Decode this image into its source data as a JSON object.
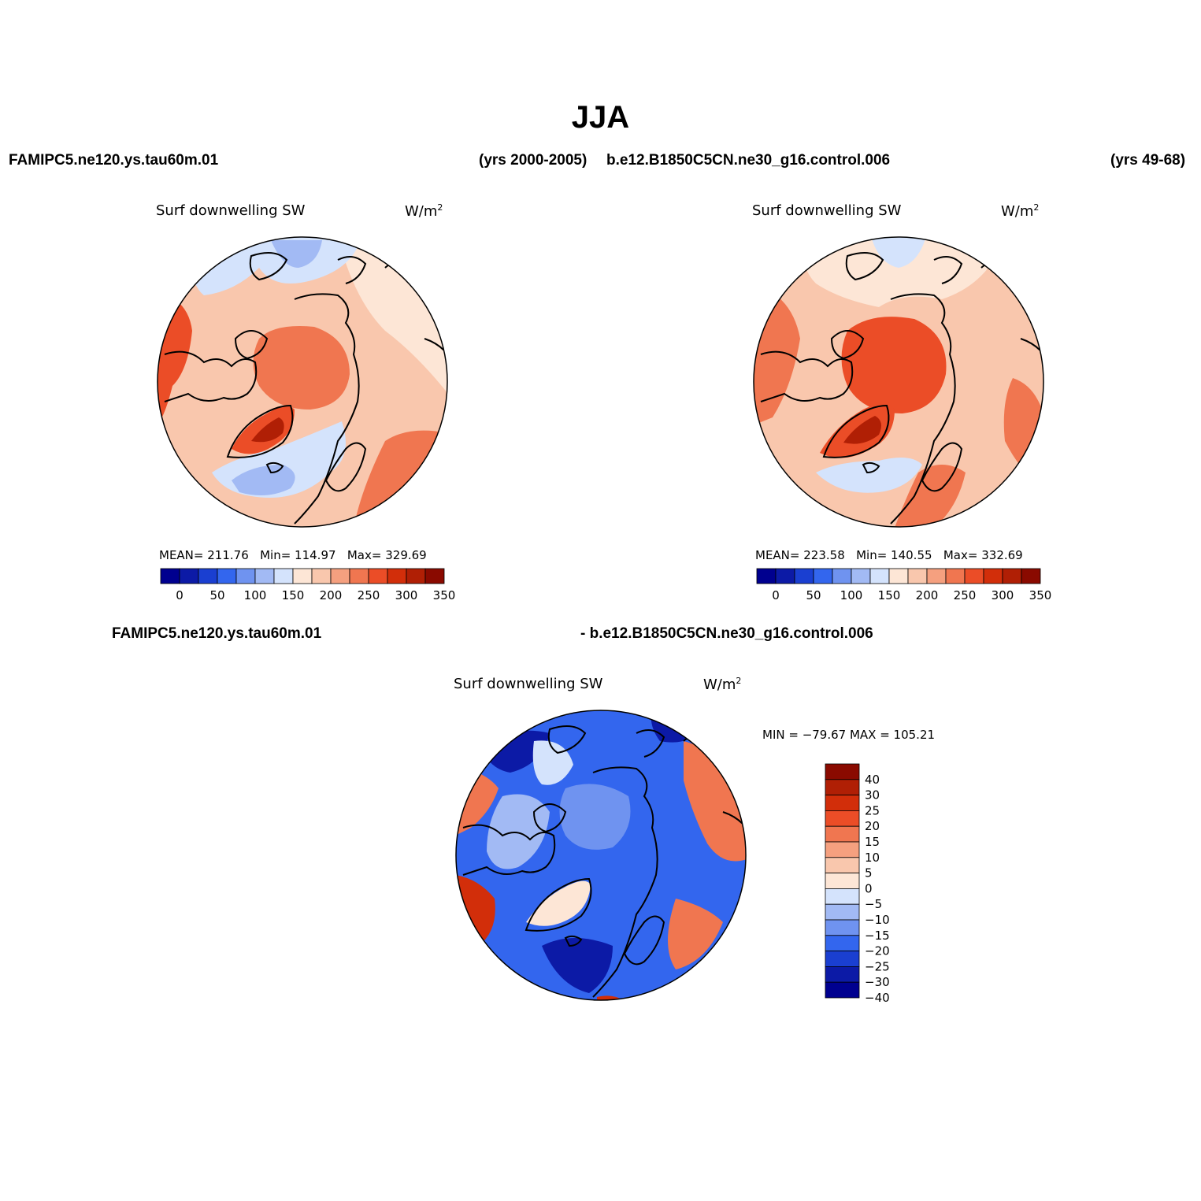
{
  "page": {
    "title": "JJA",
    "top_left_case": "FAMIPC5.ne120.ys.tau60m.01",
    "top_left_years": "(yrs 2000-2005)",
    "top_right_case": "b.e12.B1850C5CN.ne30_g16.control.006",
    "top_right_years": "(yrs 49-68)",
    "diff_case_a": "FAMIPC5.ne120.ys.tau60m.01",
    "diff_case_b": "- b.e12.B1850C5CN.ne30_g16.control.006"
  },
  "panels": [
    {
      "variable": "Surf downwelling SW",
      "units_base": "W/m",
      "units_exp": "2",
      "stats": {
        "mean_label": "MEAN=",
        "mean": "211.76",
        "min_label": "Min=",
        "min": "114.97",
        "max_label": "Max=",
        "max": "329.69"
      }
    },
    {
      "variable": "Surf downwelling SW",
      "units_base": "W/m",
      "units_exp": "2",
      "stats": {
        "mean_label": "MEAN=",
        "mean": "223.58",
        "min_label": "Min=",
        "min": "140.55",
        "max_label": "Max=",
        "max": "332.69"
      }
    },
    {
      "variable": "Surf downwelling SW",
      "units_base": "W/m",
      "units_exp": "2",
      "stats_text": "MIN = −79.67  MAX = 105.21"
    }
  ],
  "colorbars": {
    "abs": {
      "colors": [
        "#00008f",
        "#0c1aa6",
        "#1a3fd1",
        "#3366ee",
        "#6f93f0",
        "#a2baf4",
        "#d4e3fc",
        "#fde6d6",
        "#f9c7ad",
        "#f5a07f",
        "#f07650",
        "#eb4d27",
        "#d22e0a",
        "#b01f05",
        "#8a0a00"
      ],
      "labels": [
        "0",
        "50",
        "100",
        "150",
        "200",
        "250",
        "300",
        "350"
      ]
    },
    "diff": {
      "colors": [
        "#8a0a00",
        "#b01f05",
        "#d22e0a",
        "#eb4d27",
        "#f07650",
        "#f5a07f",
        "#f9c7ad",
        "#fde6d6",
        "#d4e3fc",
        "#a2baf4",
        "#6f93f0",
        "#3366ee",
        "#1a3fd1",
        "#0c1aa6",
        "#00008f"
      ],
      "labels": [
        "40",
        "30",
        "25",
        "20",
        "15",
        "10",
        "5",
        "0",
        "−5",
        "−10",
        "−15",
        "−20",
        "−25",
        "−30",
        "−40"
      ]
    }
  },
  "map_palettes": {
    "panel1": {
      "base": "#f9c7ad",
      "warm": "#eb4d27",
      "hot": "#f07650",
      "peak": "#b01f05",
      "cool": "#d4e3fc",
      "cold": "#a2baf4",
      "pale": "#fde6d6"
    },
    "panel2": {
      "base": "#f9c7ad",
      "warm": "#eb4d27",
      "hot": "#f07650",
      "peak": "#b01f05",
      "cool": "#d4e3fc",
      "cold": "#a2baf4",
      "pale": "#fde6d6"
    },
    "panel3": {
      "base": "#3366ee",
      "deep": "#0c1aa6",
      "mid": "#6f93f0",
      "light": "#a2baf4",
      "pale": "#d4e3fc",
      "warm": "#f07650",
      "hot": "#d22e0a",
      "blush": "#fde6d6"
    }
  }
}
